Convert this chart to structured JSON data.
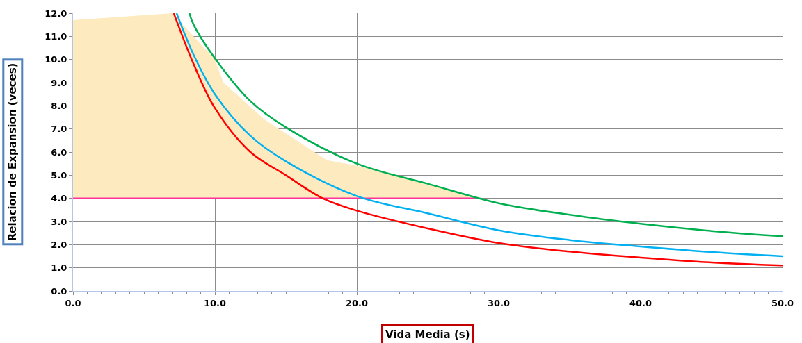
{
  "chart_data": {
    "type": "line",
    "xlabel": "Vida Media (s)",
    "ylabel": "Relacion de Expansion (veces)",
    "xlim": [
      0,
      50
    ],
    "ylim": [
      0,
      12
    ],
    "xticks": [
      {
        "value": 0,
        "label": "0.0"
      },
      {
        "value": 10,
        "label": "10.0"
      },
      {
        "value": 20,
        "label": "20.0"
      },
      {
        "value": 30,
        "label": "30.0"
      },
      {
        "value": 40,
        "label": "40.0"
      },
      {
        "value": 50,
        "label": "50.0"
      }
    ],
    "yticks": [
      {
        "value": 0,
        "label": "0.0"
      },
      {
        "value": 1,
        "label": "1.0"
      },
      {
        "value": 2,
        "label": "2.0"
      },
      {
        "value": 3,
        "label": "3.0"
      },
      {
        "value": 4,
        "label": "4.0"
      },
      {
        "value": 5,
        "label": "5.0"
      },
      {
        "value": 6,
        "label": "6.0"
      },
      {
        "value": 7,
        "label": "7.0"
      },
      {
        "value": 8,
        "label": "8.0"
      },
      {
        "value": 9,
        "label": "9.0"
      },
      {
        "value": 10,
        "label": "10.0"
      },
      {
        "value": 11,
        "label": "11.0"
      },
      {
        "value": 12,
        "label": "12.0"
      }
    ],
    "grid": true,
    "marker": "none",
    "line_style": "solid",
    "series": [
      {
        "color": "#ff3399",
        "x": [
          0,
          28.5
        ],
        "values": [
          4,
          4
        ]
      },
      {
        "type": "area",
        "color": "#fdebbf",
        "x": [
          0,
          7,
          10,
          10.6,
          13.5,
          17.9,
          20.1,
          25,
          28.5
        ],
        "values": [
          11.7,
          12,
          10,
          9.0,
          7.4,
          5.65,
          5.4,
          4.6,
          4
        ]
      },
      {
        "color": "#ff0000",
        "x": [
          7.1,
          8.5,
          10,
          12.5,
          15,
          17.6,
          20,
          25,
          30,
          35,
          40,
          45,
          50
        ],
        "values": [
          12,
          9.8,
          7.9,
          6.0,
          5.0,
          4.0,
          3.47,
          2.7,
          2.07,
          1.7,
          1.44,
          1.23,
          1.1
        ]
      },
      {
        "color": "#00b0f0",
        "x": [
          7.3,
          8.5,
          10,
          12.5,
          15,
          20,
          25,
          30,
          35,
          40,
          45,
          50
        ],
        "values": [
          12,
          10.2,
          8.5,
          6.7,
          5.6,
          4.1,
          3.35,
          2.62,
          2.2,
          1.92,
          1.68,
          1.5
        ]
      },
      {
        "color": "#00b050",
        "x": [
          8.2,
          8.5,
          10,
          12.5,
          15,
          20,
          25,
          30,
          35,
          40,
          45,
          50
        ],
        "values": [
          12,
          11.5,
          10.05,
          8.2,
          7.07,
          5.5,
          4.63,
          3.79,
          3.29,
          2.9,
          2.59,
          2.36
        ]
      }
    ]
  }
}
